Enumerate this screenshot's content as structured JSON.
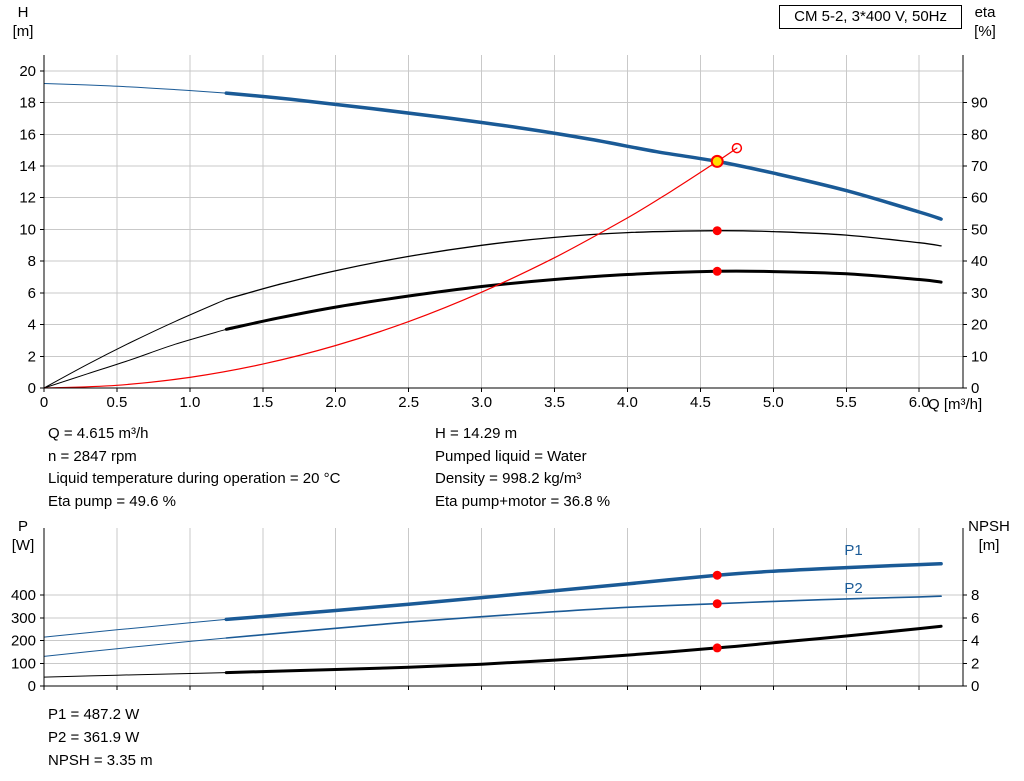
{
  "colors": {
    "curve_blue": "#1a5a96",
    "curve_red": "#f40000",
    "curve_black": "#000000",
    "grid": "#c9c9c9",
    "marker_red": "#ff0000",
    "marker_yellow": "#ffe000",
    "axis": "#000000",
    "background": "#ffffff"
  },
  "info_panel": {
    "left": [
      "Q = 4.615 m³/h",
      "n = 2847 rpm",
      "Liquid temperature during operation = 20 °C",
      "Eta pump = 49.6 %"
    ],
    "right": [
      "H = 14.29 m",
      "Pumped liquid = Water",
      "Density = 998.2 kg/m³",
      "Eta pump+motor = 36.8 %"
    ]
  },
  "results_panel": [
    "P1 = 487.2 W",
    "P2 = 361.9 W",
    "NPSH = 3.35 m"
  ],
  "chart_data": [
    {
      "type": "line",
      "title": "CM 5-2, 3*400 V, 50Hz",
      "xlabel": "Q [m³/h]",
      "ylabel_left": "H",
      "ylabel_left_unit": "[m]",
      "ylabel_right": "eta",
      "ylabel_right_unit": "[%]",
      "xlim": [
        0,
        6.3
      ],
      "ylim_left": [
        0,
        21
      ],
      "ylim_right": [
        0,
        105
      ],
      "x_ticks": [
        0,
        0.5,
        1,
        1.5,
        2,
        2.5,
        3,
        3.5,
        4,
        4.5,
        5,
        5.5,
        6
      ],
      "x_tick_labels": [
        "0",
        "0.5",
        "1.0",
        "1.5",
        "2.0",
        "2.5",
        "3.0",
        "3.5",
        "4.0",
        "4.5",
        "5.0",
        "5.5",
        "6.0"
      ],
      "y_ticks_left": [
        0,
        2,
        4,
        6,
        8,
        10,
        12,
        14,
        16,
        18,
        20
      ],
      "y_ticks_right": [
        0,
        10,
        20,
        30,
        40,
        50,
        60,
        70,
        80,
        90
      ],
      "grid": true,
      "grid_color": "#c9c9c9",
      "legend": "none",
      "duty_point": {
        "Q": 4.615,
        "H": 14.29,
        "eta_pump": 49.6,
        "eta_pump_motor": 36.8
      },
      "series": [
        {
          "name": "h-curve-lead",
          "axis": "left",
          "color": "#1a5a96",
          "width": 1,
          "points": [
            [
              0,
              19.2
            ],
            [
              0.45,
              19.05
            ],
            [
              0.9,
              18.82
            ],
            [
              1.25,
              18.6
            ]
          ]
        },
        {
          "name": "h-curve",
          "axis": "left",
          "color": "#1a5a96",
          "width": 3.5,
          "points": [
            [
              1.25,
              18.6
            ],
            [
              1.75,
              18.15
            ],
            [
              2.25,
              17.62
            ],
            [
              2.75,
              17.05
            ],
            [
              3.25,
              16.42
            ],
            [
              3.75,
              15.68
            ],
            [
              4.2,
              14.9
            ],
            [
              4.615,
              14.29
            ],
            [
              5,
              13.55
            ],
            [
              5.5,
              12.45
            ],
            [
              6,
              11.1
            ],
            [
              6.15,
              10.65
            ]
          ]
        },
        {
          "name": "eta-pump-lead",
          "axis": "right",
          "color": "#000000",
          "width": 1,
          "points": [
            [
              0,
              0
            ],
            [
              0.3,
              7.5
            ],
            [
              0.6,
              14.5
            ],
            [
              0.9,
              21
            ],
            [
              1.25,
              28
            ]
          ]
        },
        {
          "name": "eta-pump",
          "axis": "right",
          "color": "#000000",
          "width": 1.3,
          "points": [
            [
              1.25,
              28
            ],
            [
              1.6,
              32.5
            ],
            [
              2,
              37
            ],
            [
              2.5,
              41.5
            ],
            [
              3,
              45
            ],
            [
              3.5,
              47.5
            ],
            [
              4,
              49
            ],
            [
              4.615,
              49.6
            ],
            [
              5,
              49.3
            ],
            [
              5.5,
              48.2
            ],
            [
              6,
              45.8
            ],
            [
              6.15,
              44.8
            ]
          ]
        },
        {
          "name": "eta-pump-motor-lead",
          "axis": "right",
          "color": "#000000",
          "width": 1,
          "points": [
            [
              0,
              0
            ],
            [
              0.3,
              4.5
            ],
            [
              0.6,
              9
            ],
            [
              0.9,
              13.8
            ],
            [
              1.25,
              18.5
            ]
          ]
        },
        {
          "name": "eta-pump-motor",
          "axis": "right",
          "color": "#000000",
          "width": 3,
          "points": [
            [
              1.25,
              18.5
            ],
            [
              1.6,
              22
            ],
            [
              2,
              25.5
            ],
            [
              2.5,
              29
            ],
            [
              3,
              32
            ],
            [
              3.5,
              34.2
            ],
            [
              4,
              35.8
            ],
            [
              4.615,
              36.8
            ],
            [
              5,
              36.7
            ],
            [
              5.5,
              36
            ],
            [
              6,
              34.2
            ],
            [
              6.15,
              33.4
            ]
          ]
        },
        {
          "name": "system-curve",
          "axis": "left",
          "color": "#f40000",
          "width": 1.2,
          "points": [
            [
              0,
              0
            ],
            [
              0.5,
              0.17
            ],
            [
              1,
              0.67
            ],
            [
              1.5,
              1.51
            ],
            [
              2,
              2.68
            ],
            [
              2.5,
              4.19
            ],
            [
              3,
              6.04
            ],
            [
              3.5,
              8.22
            ],
            [
              4,
              10.73
            ],
            [
              4.3,
              12.41
            ],
            [
              4.615,
              14.29
            ],
            [
              4.75,
              15.13
            ]
          ]
        }
      ],
      "markers": [
        {
          "type": "dot",
          "axis": "right",
          "q": 4.615,
          "v": 49.6,
          "fill": "#ff0000"
        },
        {
          "type": "dot",
          "axis": "right",
          "q": 4.615,
          "v": 36.8,
          "fill": "#ff0000"
        },
        {
          "type": "ring",
          "axis": "left",
          "q": 4.75,
          "v": 15.13,
          "stroke": "#ff0000"
        },
        {
          "type": "duty",
          "axis": "left",
          "q": 4.615,
          "v": 14.29,
          "fill": "#ffe000",
          "stroke": "#ff0000"
        }
      ]
    },
    {
      "type": "line",
      "title": "",
      "xlabel": "",
      "ylabel_left": "P",
      "ylabel_left_unit": "[W]",
      "ylabel_right": "NPSH",
      "ylabel_right_unit": "[m]",
      "xlim": [
        0,
        6.3
      ],
      "ylim_left": [
        0,
        695
      ],
      "ylim_right": [
        0,
        13.9
      ],
      "x_ticks": [
        0,
        0.5,
        1,
        1.5,
        2,
        2.5,
        3,
        3.5,
        4,
        4.5,
        5,
        5.5,
        6
      ],
      "y_ticks_left": [
        0,
        100,
        200,
        300,
        400
      ],
      "y_ticks_right": [
        0,
        2,
        4,
        6,
        8
      ],
      "grid": true,
      "grid_color": "#c9c9c9",
      "legend": "none",
      "duty_point": {
        "Q": 4.615,
        "P1": 487.2,
        "P2": 361.9,
        "NPSH": 3.35
      },
      "series": [
        {
          "name": "p1-lead",
          "axis": "left",
          "color": "#1a5a96",
          "width": 1,
          "points": [
            [
              0,
              215
            ],
            [
              0.5,
              247
            ],
            [
              1,
              278
            ],
            [
              1.25,
              293
            ]
          ]
        },
        {
          "name": "p1",
          "axis": "left",
          "color": "#1a5a96",
          "width": 3.5,
          "points": [
            [
              1.25,
              293
            ],
            [
              1.6,
              311
            ],
            [
              2,
              332
            ],
            [
              2.5,
              360
            ],
            [
              3,
              389
            ],
            [
              3.5,
              419
            ],
            [
              4,
              449
            ],
            [
              4.615,
              487.2
            ],
            [
              5,
              505
            ],
            [
              5.5,
              521
            ],
            [
              6,
              534
            ],
            [
              6.15,
              538
            ]
          ]
        },
        {
          "name": "p2-lead",
          "axis": "left",
          "color": "#1a5a96",
          "width": 1,
          "points": [
            [
              0,
              130
            ],
            [
              0.5,
              164
            ],
            [
              1,
              196
            ],
            [
              1.25,
              211
            ]
          ]
        },
        {
          "name": "p2",
          "axis": "left",
          "color": "#1a5a96",
          "width": 1.6,
          "points": [
            [
              1.25,
              211
            ],
            [
              2,
              254
            ],
            [
              2.5,
              281
            ],
            [
              3,
              305
            ],
            [
              3.5,
              327
            ],
            [
              4,
              346
            ],
            [
              4.615,
              361.9
            ],
            [
              5,
              372
            ],
            [
              5.5,
              383
            ],
            [
              6,
              392
            ],
            [
              6.15,
              395
            ]
          ]
        },
        {
          "name": "npsh-lead",
          "axis": "right",
          "color": "#000000",
          "width": 1,
          "points": [
            [
              0,
              0.78
            ],
            [
              0.5,
              0.95
            ],
            [
              1,
              1.1
            ],
            [
              1.25,
              1.18
            ]
          ]
        },
        {
          "name": "npsh",
          "axis": "right",
          "color": "#000000",
          "width": 3,
          "points": [
            [
              1.25,
              1.18
            ],
            [
              2,
              1.45
            ],
            [
              2.5,
              1.65
            ],
            [
              3,
              1.92
            ],
            [
              3.5,
              2.28
            ],
            [
              4,
              2.72
            ],
            [
              4.615,
              3.35
            ],
            [
              5,
              3.8
            ],
            [
              5.5,
              4.4
            ],
            [
              6,
              5.05
            ],
            [
              6.15,
              5.25
            ]
          ]
        }
      ],
      "markers": [
        {
          "type": "dot",
          "axis": "left",
          "q": 4.615,
          "v": 487.2,
          "fill": "#ff0000"
        },
        {
          "type": "dot",
          "axis": "left",
          "q": 4.615,
          "v": 361.9,
          "fill": "#ff0000"
        },
        {
          "type": "dot",
          "axis": "right",
          "q": 4.615,
          "v": 3.35,
          "fill": "#ff0000"
        }
      ],
      "annotations": [
        {
          "text": "P1",
          "q": 5.55,
          "v": 598,
          "axis": "left",
          "color": "#1a5a96"
        },
        {
          "text": "P2",
          "q": 5.55,
          "v": 432,
          "axis": "left",
          "color": "#1a5a96"
        }
      ]
    }
  ]
}
